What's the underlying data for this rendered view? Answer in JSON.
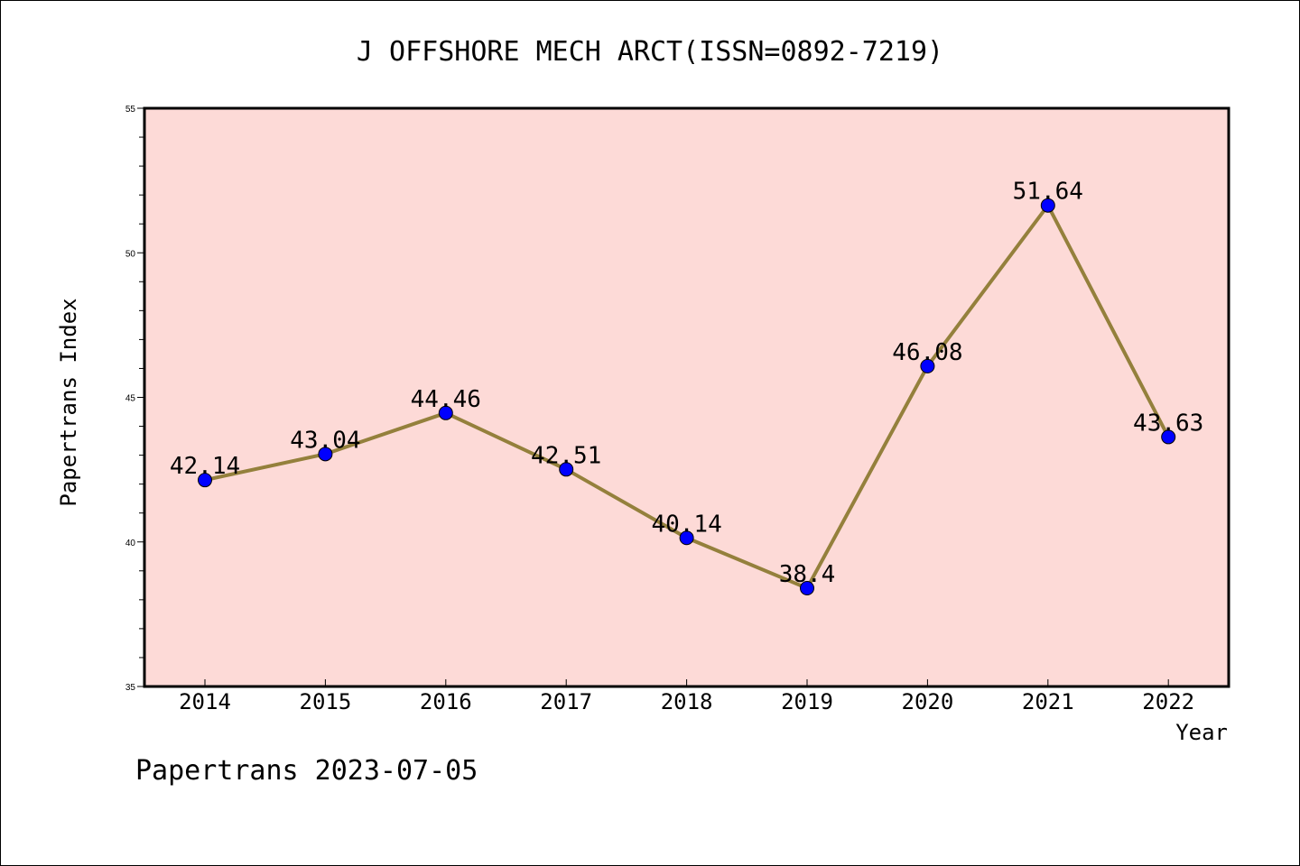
{
  "chart_data": {
    "type": "line",
    "title": "J OFFSHORE MECH ARCT(ISSN=0892-7219)",
    "xlabel": "Year",
    "ylabel": "Papertrans Index",
    "categories": [
      "2014",
      "2015",
      "2016",
      "2017",
      "2018",
      "2019",
      "2020",
      "2021",
      "2022"
    ],
    "values": [
      42.14,
      43.04,
      44.46,
      42.51,
      40.14,
      38.4,
      46.08,
      51.64,
      43.63
    ],
    "data_labels": [
      "42.14",
      "43.04",
      "44.46",
      "42.51",
      "40.14",
      "38.4",
      "46.08",
      "51.64",
      "43.63"
    ],
    "ylim": [
      35,
      55
    ],
    "yticks": [
      35,
      40,
      45,
      50,
      55
    ],
    "ytick_labels": [
      "35",
      "40",
      "45",
      "50",
      "55"
    ],
    "grid": false,
    "colors": {
      "plot_background": "#fddad7",
      "line": "#94803c",
      "marker": "#0000ff",
      "axes": "#000000"
    }
  },
  "footer": "Papertrans 2023-07-05"
}
